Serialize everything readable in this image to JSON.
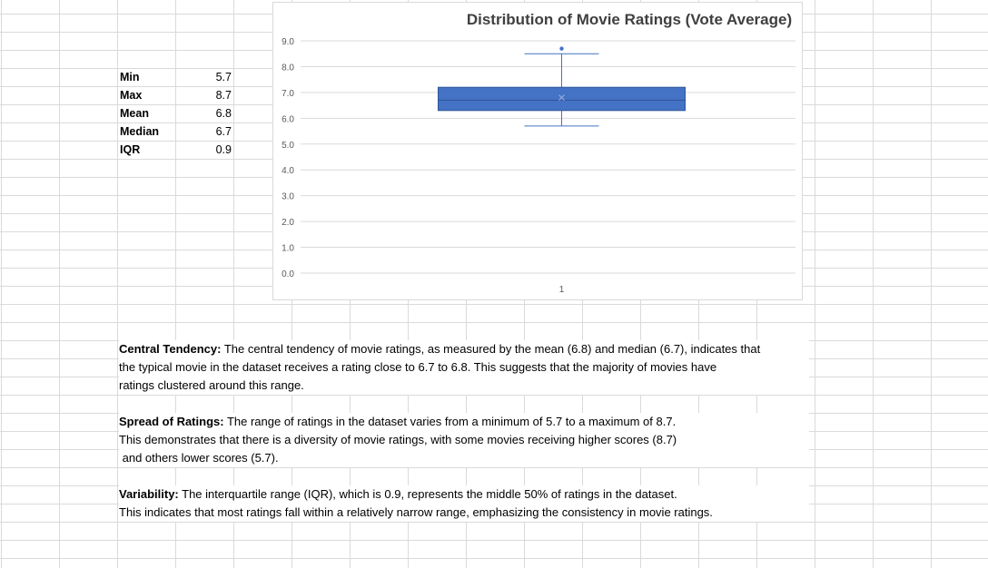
{
  "stats": [
    {
      "label": "Min",
      "value": "5.7"
    },
    {
      "label": "Max",
      "value": "8.7"
    },
    {
      "label": "Mean",
      "value": "6.8"
    },
    {
      "label": "Median",
      "value": "6.7"
    },
    {
      "label": "IQR",
      "value": "0.9"
    }
  ],
  "chart_data": {
    "type": "box",
    "title": "Distribution of Movie Ratings (Vote Average)",
    "categories": [
      "1"
    ],
    "ylim": [
      0,
      9
    ],
    "y_ticks": [
      "0.0",
      "1.0",
      "2.0",
      "3.0",
      "4.0",
      "5.0",
      "6.0",
      "7.0",
      "8.0",
      "9.0"
    ],
    "grid": true,
    "box": {
      "whisker_low": 5.7,
      "q1": 6.3,
      "median": 6.7,
      "mean": 6.8,
      "q3": 7.2,
      "whisker_high": 8.5,
      "outliers": [
        8.7
      ]
    },
    "box_color": "#4472C4"
  },
  "paragraphs": {
    "central": {
      "heading": "Central Tendency:",
      "lines": [
        " The central tendency of movie ratings, as measured by the mean (6.8) and median (6.7), indicates that",
        "the typical movie in the dataset receives a rating close to 6.7 to 6.8. This suggests that the majority of movies have",
        "ratings clustered around this range."
      ]
    },
    "spread": {
      "heading": "Spread of Ratings:",
      "lines": [
        " The range of ratings in the dataset varies from a minimum of 5.7 to a maximum of 8.7.",
        "This demonstrates that there is a diversity of movie ratings, with some movies receiving higher scores (8.7)",
        " and others lower scores (5.7)."
      ]
    },
    "variability": {
      "heading": "Variability:",
      "lines": [
        " The interquartile range (IQR), which is 0.9, represents the middle 50% of ratings in the dataset.",
        "This indicates that most ratings fall within a relatively narrow range, emphasizing the consistency in movie ratings."
      ]
    }
  }
}
